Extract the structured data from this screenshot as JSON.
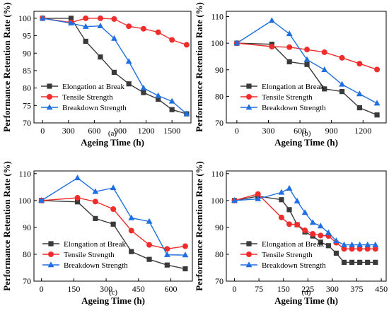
{
  "chart_data": [
    {
      "type": "line",
      "caption": "(a)",
      "xlabel": "Ageing Time (h)",
      "ylabel": "Performance Retention Rate (%)",
      "xlim": [
        -100,
        1720
      ],
      "ylim": [
        70,
        102
      ],
      "xticks": [
        0,
        300,
        600,
        900,
        1200,
        1500
      ],
      "yticks": [
        70,
        75,
        80,
        85,
        90,
        95,
        100
      ],
      "legend_position": "lower-left",
      "series": [
        {
          "name": "Elongation at Break",
          "color": "#3a3a3a",
          "marker": "square",
          "x": [
            0,
            330,
            500,
            670,
            830,
            1000,
            1170,
            1340,
            1500,
            1670
          ],
          "y": [
            100,
            100,
            93.4,
            88.9,
            84.5,
            81.2,
            78.7,
            76.8,
            73.8,
            72.6
          ]
        },
        {
          "name": "Tensile Strength",
          "color": "#f02c2c",
          "marker": "circle",
          "x": [
            0,
            330,
            500,
            670,
            830,
            1000,
            1170,
            1340,
            1500,
            1670
          ],
          "y": [
            100,
            98.8,
            100,
            100,
            99.8,
            97.7,
            97.0,
            96.0,
            93.8,
            92.4
          ]
        },
        {
          "name": "Breakdown Strength",
          "color": "#1f6fe0",
          "marker": "triangle",
          "x": [
            0,
            330,
            500,
            670,
            830,
            1000,
            1170,
            1340,
            1500,
            1670
          ],
          "y": [
            100,
            98.6,
            97.6,
            97.8,
            94.2,
            87.6,
            80.0,
            77.8,
            76.2,
            72.6
          ]
        }
      ]
    },
    {
      "type": "line",
      "caption": "(b)",
      "xlabel": "Ageing Time (h)",
      "ylabel": "Performance Retention Rate (%)",
      "xlim": [
        -100,
        1420
      ],
      "ylim": [
        70,
        112
      ],
      "xticks": [
        0,
        300,
        600,
        900,
        1200
      ],
      "yticks": [
        70,
        80,
        90,
        100,
        110
      ],
      "legend_position": "lower-center",
      "series": [
        {
          "name": "Elongation at Break",
          "color": "#3a3a3a",
          "marker": "square",
          "x": [
            0,
            333,
            500,
            667,
            833,
            1000,
            1167,
            1333
          ],
          "y": [
            100,
            99.6,
            93.0,
            92.0,
            82.8,
            81.8,
            75.7,
            73.0
          ]
        },
        {
          "name": "Tensile Strength",
          "color": "#f02c2c",
          "marker": "circle",
          "x": [
            0,
            333,
            500,
            667,
            833,
            1000,
            1167,
            1333
          ],
          "y": [
            100,
            98.7,
            98.5,
            97.6,
            96.6,
            94.5,
            92.3,
            90.1
          ]
        },
        {
          "name": "Breakdown Strength",
          "color": "#1f6fe0",
          "marker": "triangle",
          "x": [
            0,
            333,
            500,
            667,
            833,
            1000,
            1167,
            1333
          ],
          "y": [
            100,
            108.5,
            103.5,
            93.8,
            90.0,
            84.5,
            80.9,
            77.4
          ]
        }
      ]
    },
    {
      "type": "line",
      "caption": "(c)",
      "xlabel": "Ageing Time (h)",
      "ylabel": "Performance Retention Rate (%)",
      "xlim": [
        -35,
        700
      ],
      "ylim": [
        70,
        111
      ],
      "xticks": [
        0,
        150,
        300,
        450,
        600
      ],
      "yticks": [
        70,
        80,
        90,
        100,
        110
      ],
      "legend_position": "lower-center",
      "series": [
        {
          "name": "Elongation at Break",
          "color": "#3a3a3a",
          "marker": "square",
          "x": [
            0,
            167,
            250,
            333,
            417,
            500,
            583,
            667
          ],
          "y": [
            100,
            99.5,
            93.3,
            91.2,
            81.0,
            78.1,
            76.0,
            74.6
          ]
        },
        {
          "name": "Tensile Strength",
          "color": "#f02c2c",
          "marker": "circle",
          "x": [
            0,
            167,
            250,
            333,
            417,
            500,
            583,
            667
          ],
          "y": [
            100,
            101.0,
            99.6,
            96.8,
            88.8,
            83.5,
            82.0,
            83.0
          ]
        },
        {
          "name": "Breakdown Strength",
          "color": "#1f6fe0",
          "marker": "triangle",
          "x": [
            0,
            167,
            250,
            333,
            417,
            500,
            583,
            667
          ],
          "y": [
            100,
            108.4,
            103.3,
            104.7,
            93.5,
            92.2,
            79.8,
            79.7
          ]
        }
      ]
    },
    {
      "type": "line",
      "caption": "(d)",
      "xlabel": "Ageing Time (h)",
      "ylabel": "Performance Retention Rate (%)",
      "xlim": [
        -25,
        465
      ],
      "ylim": [
        70,
        111
      ],
      "xticks": [
        0,
        75,
        150,
        225,
        300,
        375,
        450
      ],
      "yticks": [
        70,
        80,
        90,
        100,
        110
      ],
      "legend_position": "lower-center",
      "series": [
        {
          "name": "Elongation at Break",
          "color": "#3a3a3a",
          "marker": "square",
          "x": [
            0,
            72,
            144,
            168,
            192,
            216,
            240,
            264,
            288,
            312,
            336,
            360,
            384,
            408,
            432
          ],
          "y": [
            100,
            101.6,
            100.3,
            96.6,
            91.0,
            88.3,
            86.8,
            84.5,
            83.2,
            80.4,
            77.0,
            77.0,
            77.0,
            77.0,
            77.0
          ]
        },
        {
          "name": "Tensile Strength",
          "color": "#f02c2c",
          "marker": "circle",
          "x": [
            0,
            72,
            144,
            168,
            192,
            216,
            240,
            264,
            288,
            312,
            336,
            360,
            384,
            408,
            432
          ],
          "y": [
            100,
            102.4,
            93.7,
            91.2,
            91.0,
            88.9,
            87.6,
            87.0,
            86.8,
            84.3,
            82.0,
            82.0,
            82.0,
            82.0,
            82.0
          ]
        },
        {
          "name": "Breakdown Strength",
          "color": "#1f6fe0",
          "marker": "triangle",
          "x": [
            0,
            72,
            144,
            168,
            192,
            216,
            240,
            264,
            288,
            312,
            336,
            360,
            384,
            408,
            432
          ],
          "y": [
            100,
            100.6,
            103.0,
            104.5,
            99.8,
            95.5,
            91.8,
            90.5,
            88.0,
            85.0,
            83.5,
            83.5,
            83.5,
            83.5,
            83.5
          ]
        }
      ]
    }
  ]
}
